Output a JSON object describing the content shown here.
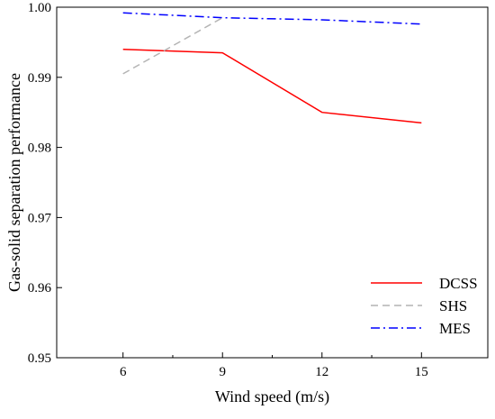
{
  "chart_data": {
    "type": "line",
    "xlabel": "Wind speed (m/s)",
    "ylabel": "Gas-solid separation performance",
    "xlim": [
      4,
      17
    ],
    "ylim": [
      0.95,
      1.0
    ],
    "xticks": [
      6,
      9,
      12,
      15
    ],
    "xtick_labels": [
      "6",
      "9",
      "12",
      "15"
    ],
    "xticks_minor": [
      7.5,
      10.5,
      13.5
    ],
    "yticks": [
      0.95,
      0.96,
      0.97,
      0.98,
      0.99,
      1.0
    ],
    "ytick_labels": [
      "0.95",
      "0.96",
      "0.97",
      "0.98",
      "0.99",
      "1.00"
    ],
    "legend_position": "bottom-right",
    "grid": false,
    "series": [
      {
        "name": "DCSS",
        "color": "#ff0000",
        "style": "solid",
        "x": [
          6,
          9,
          12,
          15
        ],
        "y": [
          0.994,
          0.9935,
          0.985,
          0.9835
        ]
      },
      {
        "name": "SHS",
        "color": "#b4b4b4",
        "style": "dashed",
        "x": [
          6,
          9
        ],
        "y": [
          0.9905,
          0.9985
        ]
      },
      {
        "name": "MES",
        "color": "#0000ff",
        "style": "dashdot",
        "x": [
          6,
          9,
          12,
          15
        ],
        "y": [
          0.9992,
          0.9985,
          0.9982,
          0.9976
        ]
      }
    ]
  }
}
